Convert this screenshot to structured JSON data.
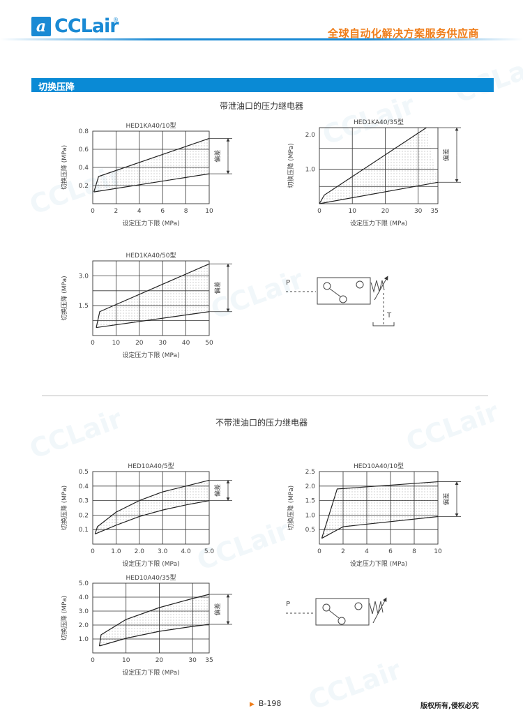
{
  "header": {
    "logo_text": "CCLair",
    "logo_mark": "a",
    "logo_reg": "®",
    "tagline": "全球自动化解决方案服务供应商"
  },
  "watermark": "CCLair",
  "section": {
    "title": "切换压降",
    "group1_title": "带泄油口的压力继电器",
    "group2_title": "不带泄油口的压力继电器"
  },
  "symbols": {
    "port_p": "P",
    "port_t": "T"
  },
  "colors": {
    "brand_blue": "#0a8ad5",
    "accent_orange": "#ef7d1a"
  },
  "chart_data": [
    {
      "type": "area",
      "title": "HED1KA40/10型",
      "xlabel": "设定压力下限 (MPa)",
      "ylabel": "切换压降 (MPa)",
      "annotation": "偏差",
      "xlim": [
        0,
        10
      ],
      "ylim": [
        0,
        0.8
      ],
      "x_ticks": [
        "0",
        "2",
        "4",
        "6",
        "8",
        "10"
      ],
      "x_tick_values": [
        0,
        2,
        4,
        6,
        8,
        10
      ],
      "y_ticks": [
        "0.2",
        "0.4",
        "0.6",
        "0.8"
      ],
      "y_tick_values": [
        0.2,
        0.4,
        0.6,
        0.8
      ],
      "x_grid": [
        2,
        4,
        6,
        8
      ],
      "y_grid": [
        0.2,
        0.4,
        0.6
      ],
      "upper": [
        [
          0.1,
          0.13
        ],
        [
          0.5,
          0.3
        ],
        [
          10,
          0.72
        ]
      ],
      "lower": [
        [
          0.1,
          0.13
        ],
        [
          10,
          0.33
        ]
      ]
    },
    {
      "type": "area",
      "title": "HED1KA40/35型",
      "xlabel": "设定压力下限 (MPa)",
      "ylabel": "切换压降 (MPa)",
      "annotation": "偏差",
      "xlim": [
        0,
        36
      ],
      "ylim": [
        0,
        2.2
      ],
      "x_ticks": [
        "0",
        "10",
        "20",
        "30",
        "35"
      ],
      "x_tick_values": [
        0,
        10,
        20,
        30,
        35
      ],
      "y_ticks": [
        "1.0",
        "2.0"
      ],
      "y_tick_values": [
        1.0,
        2.0
      ],
      "x_grid": [
        10,
        20,
        30
      ],
      "y_grid": [
        0.5,
        1.0,
        1.6
      ],
      "upper": [
        [
          0,
          0
        ],
        [
          1.5,
          0.25
        ],
        [
          32.5,
          2.2
        ]
      ],
      "lower": [
        [
          0,
          0
        ],
        [
          36,
          0.62
        ]
      ]
    },
    {
      "type": "area",
      "title": "HED1KA40/50型",
      "xlabel": "设定压力下限 (MPa)",
      "ylabel": "切换压降 (MPa)",
      "annotation": "偏差",
      "xlim": [
        0,
        50
      ],
      "ylim": [
        0,
        3.75
      ],
      "x_ticks": [
        "0",
        "10",
        "20",
        "30",
        "40",
        "50"
      ],
      "x_tick_values": [
        0,
        10,
        20,
        30,
        40,
        50
      ],
      "y_ticks": [
        "1.5",
        "3.0"
      ],
      "y_tick_values": [
        1.5,
        3.0
      ],
      "x_grid": [
        10,
        20,
        30,
        40
      ],
      "y_grid": [
        0.75,
        1.5,
        2.25,
        3.0
      ],
      "upper": [
        [
          1.5,
          0.4
        ],
        [
          3,
          1.2
        ],
        [
          50,
          3.6
        ]
      ],
      "lower": [
        [
          1.5,
          0.4
        ],
        [
          50,
          1.2
        ]
      ]
    },
    {
      "type": "area",
      "title": "HED10A40/5型",
      "xlabel": "设定压力下限 (MPa)",
      "ylabel": "切换压降 (MPa)",
      "annotation": "偏差",
      "xlim": [
        0,
        5
      ],
      "ylim": [
        0,
        0.5
      ],
      "x_ticks": [
        "0",
        "1.0",
        "2.0",
        "3.0",
        "4.0",
        "5.0"
      ],
      "x_tick_values": [
        0,
        1,
        2,
        3,
        4,
        5
      ],
      "y_ticks": [
        "0.1",
        "0.2",
        "0.3",
        "0.4",
        "0.5"
      ],
      "y_tick_values": [
        0.1,
        0.2,
        0.3,
        0.4,
        0.5
      ],
      "x_grid": [
        1,
        2,
        3,
        4
      ],
      "y_grid": [
        0.1,
        0.2,
        0.3,
        0.4
      ],
      "upper": [
        [
          0.1,
          0.07
        ],
        [
          0.2,
          0.12
        ],
        [
          1,
          0.22
        ],
        [
          2,
          0.3
        ],
        [
          3,
          0.36
        ],
        [
          4,
          0.4
        ],
        [
          5,
          0.44
        ]
      ],
      "lower": [
        [
          0.1,
          0.07
        ],
        [
          1,
          0.13
        ],
        [
          2,
          0.19
        ],
        [
          3,
          0.235
        ],
        [
          4,
          0.27
        ],
        [
          5,
          0.3
        ]
      ]
    },
    {
      "type": "area",
      "title": "HED10A40/10型",
      "xlabel": "设定压力下限 (MPa)",
      "ylabel": "切换压降 (MPa)",
      "annotation": "偏差",
      "xlim": [
        0,
        10
      ],
      "ylim": [
        0,
        2.5
      ],
      "x_ticks": [
        "0",
        "2",
        "4",
        "6",
        "8",
        "10"
      ],
      "x_tick_values": [
        0,
        2,
        4,
        6,
        8,
        10
      ],
      "y_ticks": [
        "0.5",
        "1.0",
        "1.5",
        "2.0",
        "2.5"
      ],
      "y_tick_values": [
        0.5,
        1.0,
        1.5,
        2.0,
        2.5
      ],
      "x_grid": [
        2,
        4,
        6,
        8
      ],
      "y_grid": [
        0.5,
        1.0,
        1.5,
        2.0
      ],
      "upper": [
        [
          0.2,
          0.2
        ],
        [
          1.5,
          1.9
        ],
        [
          10,
          2.15
        ]
      ],
      "lower": [
        [
          0.2,
          0.2
        ],
        [
          2,
          0.6
        ],
        [
          10,
          0.95
        ]
      ]
    },
    {
      "type": "area",
      "title": "HED10A40/35型",
      "xlabel": "设定压力下限 (MPa)",
      "ylabel": "切换压降 (MPa)",
      "annotation": "偏差",
      "xlim": [
        0,
        35
      ],
      "ylim": [
        0,
        5.0
      ],
      "x_ticks": [
        "0",
        "10",
        "20",
        "30",
        "35"
      ],
      "x_tick_values": [
        0,
        10,
        20,
        30,
        35
      ],
      "y_ticks": [
        "1.0",
        "2.0",
        "3.0",
        "4.0",
        "5.0"
      ],
      "y_tick_values": [
        1,
        2,
        3,
        4,
        5
      ],
      "x_grid": [
        10,
        20,
        30
      ],
      "y_grid": [
        1,
        2,
        3,
        4
      ],
      "upper": [
        [
          2,
          0.5
        ],
        [
          2.5,
          1.3
        ],
        [
          10,
          2.4
        ],
        [
          20,
          3.25
        ],
        [
          30,
          3.9
        ],
        [
          35,
          4.2
        ]
      ],
      "lower": [
        [
          2,
          0.5
        ],
        [
          10,
          1.05
        ],
        [
          20,
          1.55
        ],
        [
          30,
          1.9
        ],
        [
          35,
          2.05
        ]
      ]
    }
  ],
  "footer": {
    "page": "B-198",
    "copyright": "版权所有,侵权必究"
  }
}
